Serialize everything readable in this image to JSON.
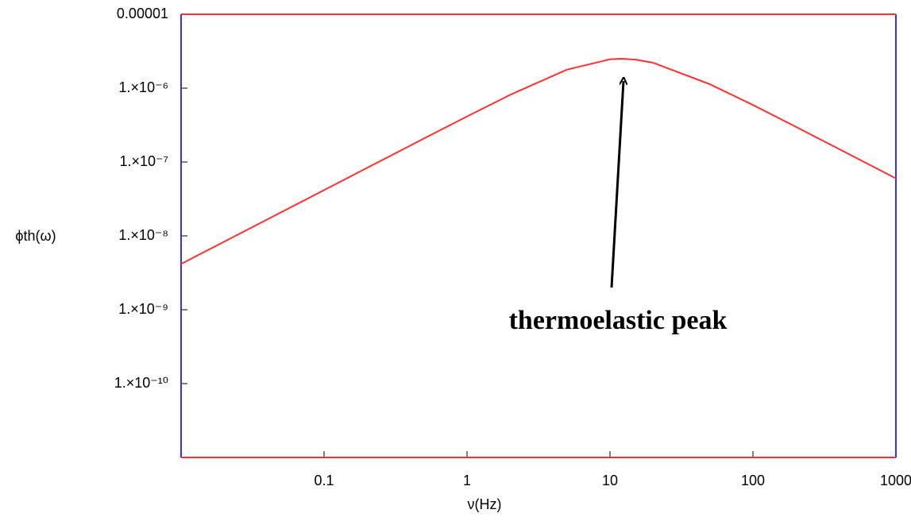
{
  "chart_data": {
    "type": "line",
    "x_label": "ν(Hz)",
    "y_label": "ϕth(ω)",
    "annotation": "thermoelastic peak",
    "x_log": true,
    "y_log": true,
    "xlim": [
      0.01,
      1000
    ],
    "ylim": [
      1e-11,
      1e-05
    ],
    "xticks": [
      0.1,
      1,
      10,
      100,
      1000
    ],
    "yticks": [
      {
        "value": 1e-05,
        "label": "0.00001"
      },
      {
        "value": 1e-06,
        "label": "1.×10⁻⁶"
      },
      {
        "value": 1e-07,
        "label": "1.×10⁻⁷"
      },
      {
        "value": 1e-08,
        "label": "1.×10⁻⁸"
      },
      {
        "value": 1e-09,
        "label": "1.×10⁻⁹"
      },
      {
        "value": 1e-10,
        "label": "1.×10⁻¹⁰"
      }
    ],
    "x": [
      0.01,
      0.02,
      0.05,
      0.1,
      0.2,
      0.5,
      1,
      2,
      5,
      10,
      12,
      15,
      20,
      50,
      100,
      200,
      500,
      1000
    ],
    "series": [
      {
        "color": "#ff3030",
        "values": [
          4.17e-09,
          8.33e-09,
          2.08e-08,
          4.17e-08,
          8.33e-08,
          2.08e-07,
          4.14e-07,
          8.11e-07,
          1.78e-06,
          2.46e-06,
          2.5e-06,
          2.44e-06,
          2.21e-06,
          1.13e-06,
          5.92e-07,
          2.99e-07,
          1.2e-07,
          6e-08
        ]
      }
    ]
  }
}
